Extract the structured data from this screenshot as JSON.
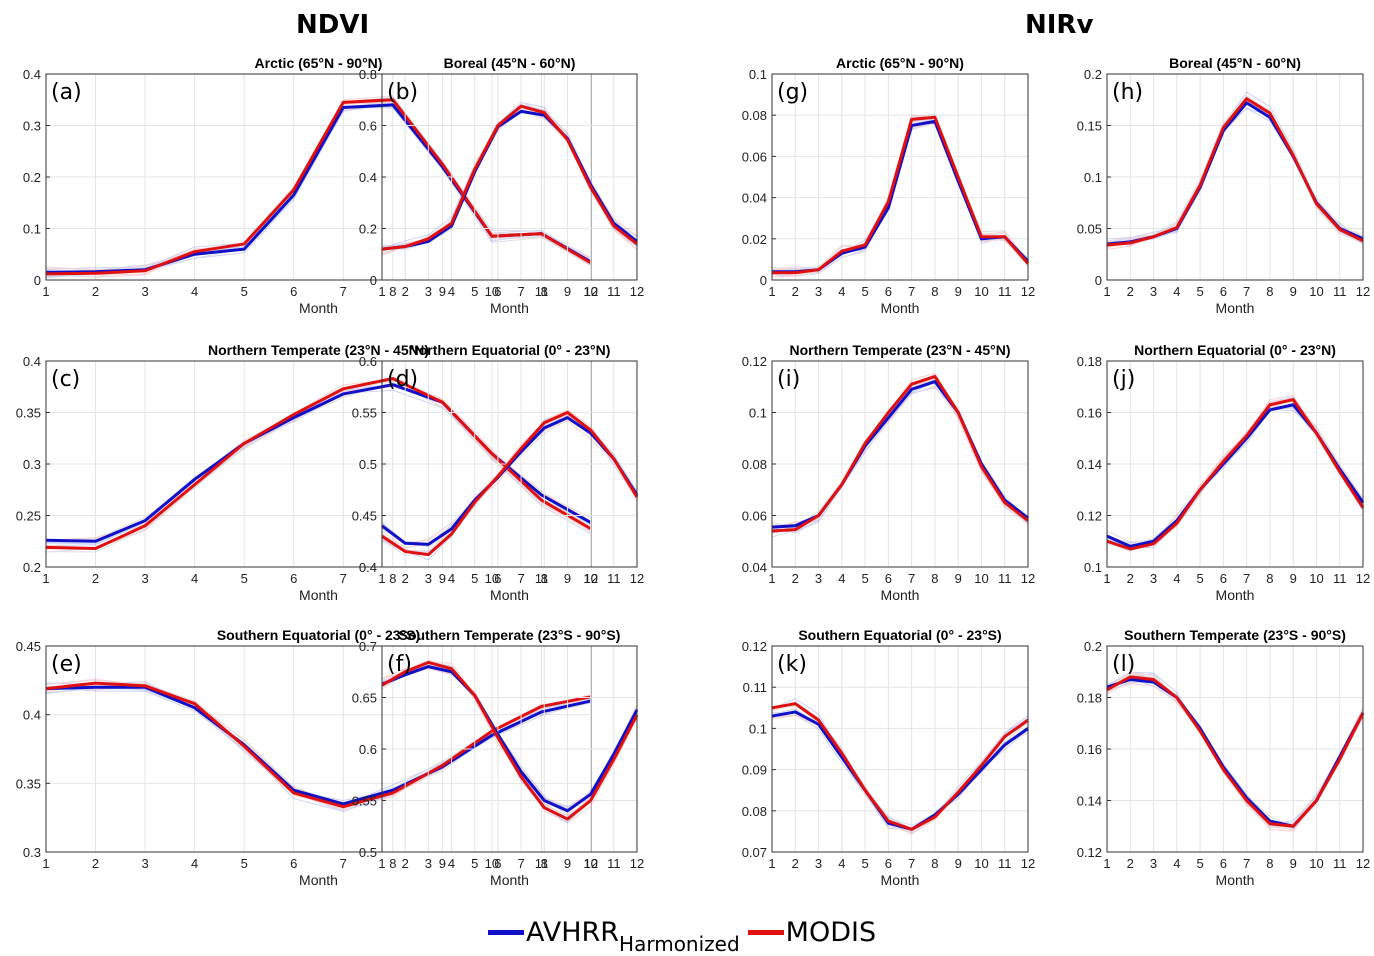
{
  "section_titles": {
    "left": "NDVI",
    "right": "NIRv"
  },
  "legend": {
    "avhrr_main": "AVHRR",
    "avhrr_sub": "Harmonized",
    "modis": "MODIS",
    "avhrr_color": "#1010c8",
    "modis_color": "#e01010"
  },
  "chart_data": [
    {
      "type": "line",
      "panel": "(a)",
      "title": "Arctic (65°N - 90°N)",
      "xlabel": "Month",
      "ylabel": "",
      "x": [
        1,
        2,
        3,
        4,
        5,
        6,
        7,
        8,
        9,
        10,
        11,
        12
      ],
      "ylim": [
        0,
        0.4
      ],
      "yticks": [
        0,
        0.1,
        0.2,
        0.3,
        0.4
      ],
      "yticklabels": [
        "0",
        "0.1",
        "0.2",
        "0.3",
        "0.4"
      ],
      "series": [
        {
          "name": "AVHRR Harmonized",
          "values": [
            0.015,
            0.016,
            0.02,
            0.05,
            0.06,
            0.165,
            0.335,
            0.34,
            0.22,
            0.085,
            0.09,
            0.035
          ]
        },
        {
          "name": "MODIS",
          "values": [
            0.012,
            0.013,
            0.018,
            0.055,
            0.07,
            0.175,
            0.345,
            0.35,
            0.225,
            0.085,
            0.09,
            0.033
          ]
        }
      ]
    },
    {
      "type": "line",
      "panel": "(b)",
      "title": "Boreal (45°N - 60°N)",
      "xlabel": "Month",
      "ylabel": "",
      "x": [
        1,
        2,
        3,
        4,
        5,
        6,
        7,
        8,
        9,
        10,
        11,
        12
      ],
      "ylim": [
        0,
        0.8
      ],
      "yticks": [
        0,
        0.2,
        0.4,
        0.6,
        0.8
      ],
      "yticklabels": [
        "0",
        "0.2",
        "0.4",
        "0.6",
        "0.8"
      ],
      "series": [
        {
          "name": "AVHRR Harmonized",
          "values": [
            0.12,
            0.13,
            0.15,
            0.21,
            0.42,
            0.595,
            0.655,
            0.64,
            0.55,
            0.37,
            0.22,
            0.15
          ]
        },
        {
          "name": "MODIS",
          "values": [
            0.12,
            0.13,
            0.16,
            0.22,
            0.43,
            0.6,
            0.675,
            0.65,
            0.545,
            0.36,
            0.21,
            0.14
          ]
        }
      ]
    },
    {
      "type": "line",
      "panel": "(g)",
      "title": "Arctic (65°N - 90°N)",
      "xlabel": "Month",
      "ylabel": "",
      "x": [
        1,
        2,
        3,
        4,
        5,
        6,
        7,
        8,
        9,
        10,
        11,
        12
      ],
      "ylim": [
        0,
        0.1
      ],
      "yticks": [
        0,
        0.02,
        0.04,
        0.06,
        0.08,
        0.1
      ],
      "yticklabels": [
        "0",
        "0.02",
        "0.04",
        "0.06",
        "0.08",
        "0.1"
      ],
      "series": [
        {
          "name": "AVHRR Harmonized",
          "values": [
            0.004,
            0.004,
            0.005,
            0.013,
            0.016,
            0.035,
            0.075,
            0.077,
            0.048,
            0.02,
            0.021,
            0.009
          ]
        },
        {
          "name": "MODIS",
          "values": [
            0.0035,
            0.0035,
            0.005,
            0.014,
            0.017,
            0.038,
            0.078,
            0.079,
            0.05,
            0.021,
            0.021,
            0.008
          ]
        }
      ]
    },
    {
      "type": "line",
      "panel": "(h)",
      "title": "Boreal (45°N - 60°N)",
      "xlabel": "Month",
      "ylabel": "",
      "x": [
        1,
        2,
        3,
        4,
        5,
        6,
        7,
        8,
        9,
        10,
        11,
        12
      ],
      "ylim": [
        0,
        0.2
      ],
      "yticks": [
        0,
        0.05,
        0.1,
        0.15,
        0.2
      ],
      "yticklabels": [
        "0",
        "0.05",
        "0.1",
        "0.15",
        "0.2"
      ],
      "series": [
        {
          "name": "AVHRR Harmonized",
          "values": [
            0.035,
            0.037,
            0.042,
            0.05,
            0.09,
            0.145,
            0.172,
            0.158,
            0.12,
            0.075,
            0.05,
            0.04
          ]
        },
        {
          "name": "MODIS",
          "values": [
            0.034,
            0.036,
            0.042,
            0.051,
            0.092,
            0.148,
            0.176,
            0.162,
            0.121,
            0.074,
            0.049,
            0.038
          ]
        }
      ]
    },
    {
      "type": "line",
      "panel": "(c)",
      "title": "Northern Temperate (23°N - 45°N)",
      "xlabel": "Month",
      "ylabel": "",
      "x": [
        1,
        2,
        3,
        4,
        5,
        6,
        7,
        8,
        9,
        10,
        11,
        12
      ],
      "ylim": [
        0.2,
        0.4
      ],
      "yticks": [
        0.2,
        0.25,
        0.3,
        0.35,
        0.4
      ],
      "yticklabels": [
        "0.2",
        "0.25",
        "0.3",
        "0.35",
        "0.4"
      ],
      "series": [
        {
          "name": "AVHRR Harmonized",
          "values": [
            0.226,
            0.225,
            0.245,
            0.285,
            0.32,
            0.345,
            0.368,
            0.377,
            0.36,
            0.31,
            0.27,
            0.243
          ]
        },
        {
          "name": "MODIS",
          "values": [
            0.219,
            0.218,
            0.24,
            0.28,
            0.32,
            0.348,
            0.373,
            0.383,
            0.36,
            0.31,
            0.265,
            0.237
          ]
        }
      ]
    },
    {
      "type": "line",
      "panel": "(d)",
      "title": "Northern Equatorial (0° - 23°N)",
      "xlabel": "Month",
      "ylabel": "",
      "x": [
        1,
        2,
        3,
        4,
        5,
        6,
        7,
        8,
        9,
        10,
        11,
        12
      ],
      "ylim": [
        0.4,
        0.6
      ],
      "yticks": [
        0.4,
        0.45,
        0.5,
        0.55,
        0.6
      ],
      "yticklabels": [
        "0.4",
        "0.45",
        "0.5",
        "0.55",
        "0.6"
      ],
      "series": [
        {
          "name": "AVHRR Harmonized",
          "values": [
            0.44,
            0.423,
            0.422,
            0.437,
            0.465,
            0.487,
            0.512,
            0.535,
            0.545,
            0.53,
            0.505,
            0.47
          ]
        },
        {
          "name": "MODIS",
          "values": [
            0.43,
            0.415,
            0.412,
            0.432,
            0.463,
            0.488,
            0.515,
            0.54,
            0.55,
            0.533,
            0.505,
            0.468
          ]
        }
      ]
    },
    {
      "type": "line",
      "panel": "(i)",
      "title": "Northern Temperate (23°N - 45°N)",
      "xlabel": "Month",
      "ylabel": "",
      "x": [
        1,
        2,
        3,
        4,
        5,
        6,
        7,
        8,
        9,
        10,
        11,
        12
      ],
      "ylim": [
        0.04,
        0.12
      ],
      "yticks": [
        0.04,
        0.06,
        0.08,
        0.1,
        0.12
      ],
      "yticklabels": [
        "0.04",
        "0.06",
        "0.08",
        "0.1",
        "0.12"
      ],
      "series": [
        {
          "name": "AVHRR Harmonized",
          "values": [
            0.0555,
            0.056,
            0.06,
            0.072,
            0.087,
            0.098,
            0.109,
            0.112,
            0.1,
            0.08,
            0.066,
            0.059
          ]
        },
        {
          "name": "MODIS",
          "values": [
            0.054,
            0.0545,
            0.06,
            0.072,
            0.088,
            0.1,
            0.111,
            0.114,
            0.1,
            0.079,
            0.065,
            0.058
          ]
        }
      ]
    },
    {
      "type": "line",
      "panel": "(j)",
      "title": "Northern Equatorial (0° - 23°N)",
      "xlabel": "Month",
      "ylabel": "",
      "x": [
        1,
        2,
        3,
        4,
        5,
        6,
        7,
        8,
        9,
        10,
        11,
        12
      ],
      "ylim": [
        0.1,
        0.18
      ],
      "yticks": [
        0.1,
        0.12,
        0.14,
        0.16,
        0.18
      ],
      "yticklabels": [
        "0.1",
        "0.12",
        "0.14",
        "0.16",
        "0.18"
      ],
      "series": [
        {
          "name": "AVHRR Harmonized",
          "values": [
            0.112,
            0.108,
            0.11,
            0.118,
            0.13,
            0.14,
            0.15,
            0.161,
            0.163,
            0.152,
            0.138,
            0.125
          ]
        },
        {
          "name": "MODIS",
          "values": [
            0.11,
            0.107,
            0.109,
            0.117,
            0.13,
            0.141,
            0.151,
            0.163,
            0.165,
            0.152,
            0.137,
            0.123
          ]
        }
      ]
    },
    {
      "type": "line",
      "panel": "(e)",
      "title": "Southern Equatorial (0° - 23°S)",
      "xlabel": "Month",
      "ylabel": "",
      "x": [
        1,
        2,
        3,
        4,
        5,
        6,
        7,
        8,
        9,
        10,
        11,
        12
      ],
      "ylim": [
        0.3,
        0.45
      ],
      "yticks": [
        0.3,
        0.35,
        0.4,
        0.45
      ],
      "yticklabels": [
        "0.3",
        "0.35",
        "0.4",
        "0.45"
      ],
      "series": [
        {
          "name": "AVHRR Harmonized",
          "values": [
            0.419,
            0.42,
            0.42,
            0.405,
            0.378,
            0.345,
            0.335,
            0.345,
            0.362,
            0.385,
            0.402,
            0.41
          ]
        },
        {
          "name": "MODIS",
          "values": [
            0.419,
            0.423,
            0.421,
            0.408,
            0.377,
            0.343,
            0.333,
            0.343,
            0.363,
            0.388,
            0.406,
            0.413
          ]
        }
      ]
    },
    {
      "type": "line",
      "panel": "(f)",
      "title": "Southern Temperate (23°S - 90°S)",
      "xlabel": "Month",
      "ylabel": "",
      "x": [
        1,
        2,
        3,
        4,
        5,
        6,
        7,
        8,
        9,
        10,
        11,
        12
      ],
      "ylim": [
        0.5,
        0.7
      ],
      "yticks": [
        0.5,
        0.55,
        0.6,
        0.65,
        0.7
      ],
      "yticklabels": [
        "0.5",
        "0.55",
        "0.6",
        "0.65",
        "0.7"
      ],
      "series": [
        {
          "name": "AVHRR Harmonized",
          "values": [
            0.663,
            0.672,
            0.68,
            0.675,
            0.652,
            0.614,
            0.578,
            0.55,
            0.54,
            0.556,
            0.595,
            0.638
          ]
        },
        {
          "name": "MODIS",
          "values": [
            0.662,
            0.675,
            0.684,
            0.678,
            0.652,
            0.611,
            0.573,
            0.543,
            0.532,
            0.55,
            0.59,
            0.633
          ]
        }
      ]
    },
    {
      "type": "line",
      "panel": "(k)",
      "title": "Southern Equatorial (0° - 23°S)",
      "xlabel": "Month",
      "ylabel": "",
      "x": [
        1,
        2,
        3,
        4,
        5,
        6,
        7,
        8,
        9,
        10,
        11,
        12
      ],
      "ylim": [
        0.07,
        0.12
      ],
      "yticks": [
        0.07,
        0.08,
        0.09,
        0.1,
        0.11,
        0.12
      ],
      "yticklabels": [
        "0.07",
        "0.08",
        "0.09",
        "0.1",
        "0.11",
        "0.12"
      ],
      "series": [
        {
          "name": "AVHRR Harmonized",
          "values": [
            0.103,
            0.104,
            0.101,
            0.093,
            0.085,
            0.077,
            0.0755,
            0.079,
            0.084,
            0.09,
            0.096,
            0.1
          ]
        },
        {
          "name": "MODIS",
          "values": [
            0.105,
            0.106,
            0.102,
            0.094,
            0.085,
            0.0775,
            0.0755,
            0.0785,
            0.0845,
            0.091,
            0.098,
            0.102
          ]
        }
      ]
    },
    {
      "type": "line",
      "panel": "(l)",
      "title": "Southern Temperate (23°S - 90°S)",
      "xlabel": "Month",
      "ylabel": "",
      "x": [
        1,
        2,
        3,
        4,
        5,
        6,
        7,
        8,
        9,
        10,
        11,
        12
      ],
      "ylim": [
        0.12,
        0.2
      ],
      "yticks": [
        0.12,
        0.14,
        0.16,
        0.18,
        0.2
      ],
      "yticklabels": [
        "0.12",
        "0.14",
        "0.16",
        "0.18",
        "0.2"
      ],
      "series": [
        {
          "name": "AVHRR Harmonized",
          "values": [
            0.184,
            0.187,
            0.186,
            0.18,
            0.168,
            0.153,
            0.141,
            0.132,
            0.13,
            0.14,
            0.157,
            0.174
          ]
        },
        {
          "name": "MODIS",
          "values": [
            0.183,
            0.188,
            0.187,
            0.18,
            0.167,
            0.152,
            0.14,
            0.131,
            0.13,
            0.14,
            0.156,
            0.174
          ]
        }
      ]
    }
  ]
}
